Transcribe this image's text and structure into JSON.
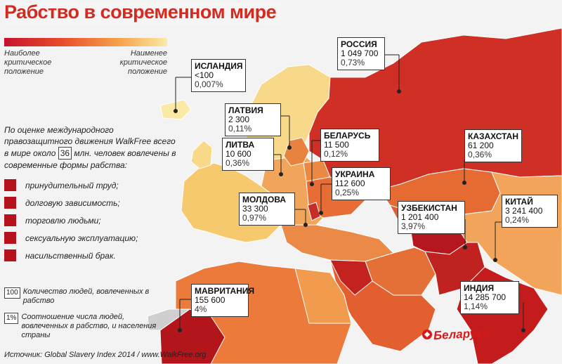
{
  "title": "Рабство в современном мире",
  "legend": {
    "left_label": "Наиболее критическое положение",
    "right_label": "Наименее критическое положение",
    "gradient_colors": [
      "#c8102e",
      "#e74c2a",
      "#f5a24a",
      "#fbe9a6"
    ]
  },
  "intro": {
    "before": "По оценке международного правозащитного движения WalkFree всего в мире около",
    "number": "36",
    "after": "млн. человек вовлечены в современные формы рабства:"
  },
  "forms": [
    "принудительный труд;",
    "долговую зависимость;",
    "торговлю людьми;",
    "сексуальную эксплуатацию;",
    "насильственный брак."
  ],
  "key": {
    "count_symbol": "100",
    "count_text": "Количество людей, вовлеченных в рабство",
    "ratio_symbol": "1%",
    "ratio_text": "Соотношение числа людей, вовлеченных в рабство, и населения страны"
  },
  "source": "Источник: Global Slavery Index 2014 / www.WalkFree.org",
  "brand": "Беларусь",
  "countries": [
    {
      "name": "ИСЛАНДИЯ",
      "count": "<100",
      "ratio": "0,007%"
    },
    {
      "name": "ЛАТВИЯ",
      "count": "2 300",
      "ratio": "0,11%"
    },
    {
      "name": "ЛИТВА",
      "count": "10 600",
      "ratio": "0,36%"
    },
    {
      "name": "БЕЛАРУСЬ",
      "count": "11 500",
      "ratio": "0,12%"
    },
    {
      "name": "УКРАИНА",
      "count": "112 600",
      "ratio": "0,25%"
    },
    {
      "name": "МОЛДОВА",
      "count": "33 300",
      "ratio": "0,97%"
    },
    {
      "name": "РОССИЯ",
      "count": "1 049 700",
      "ratio": "0,73%"
    },
    {
      "name": "КАЗАХСТАН",
      "count": "61 200",
      "ratio": "0,36%"
    },
    {
      "name": "УЗБЕКИСТАН",
      "count": "1 201 400",
      "ratio": "3,97%"
    },
    {
      "name": "КИТАЙ",
      "count": "3 241 400",
      "ratio": "0,24%"
    },
    {
      "name": "МАВРИТАНИЯ",
      "count": "155 600",
      "ratio": "4%"
    },
    {
      "name": "ИНДИЯ",
      "count": "14 285 700",
      "ratio": "1,14%"
    }
  ]
}
